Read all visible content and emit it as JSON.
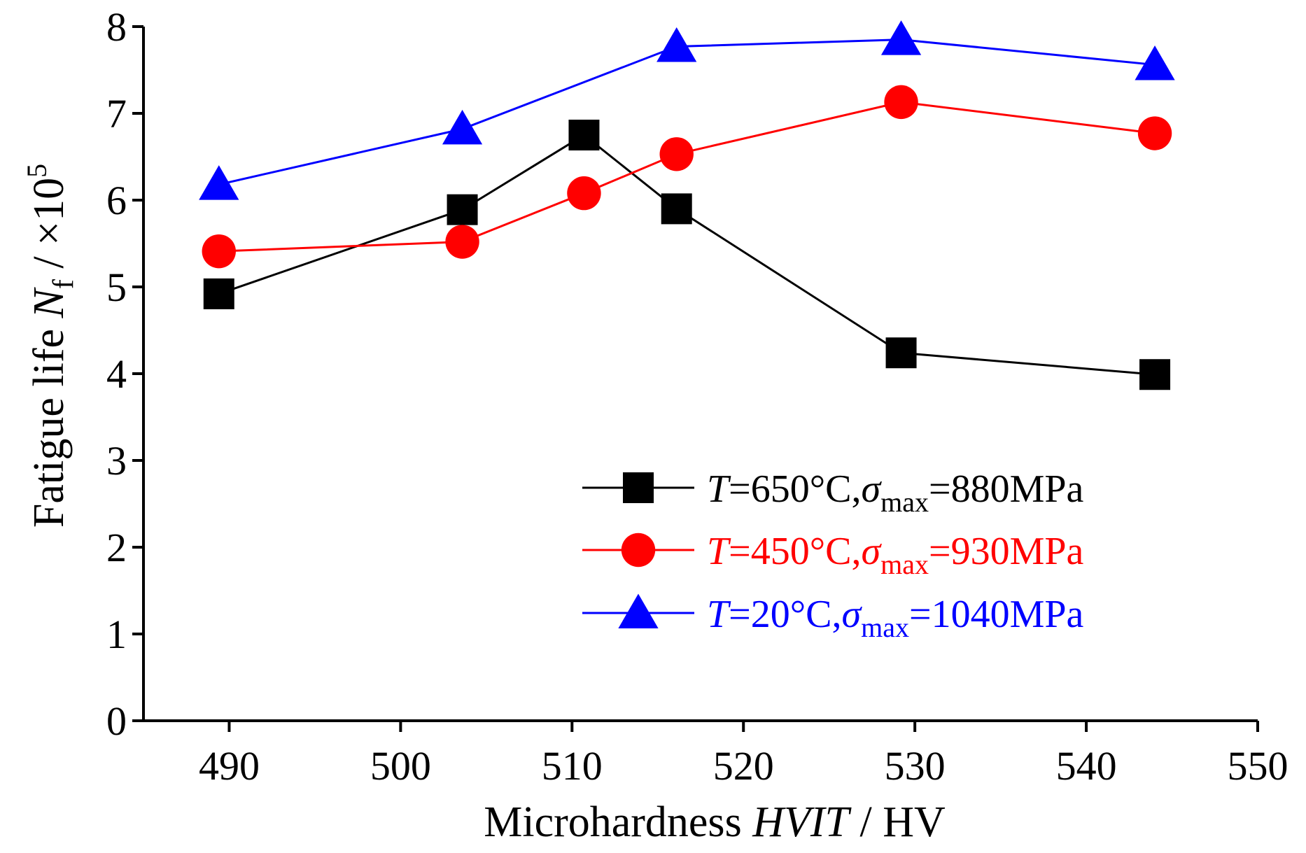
{
  "chart_data": {
    "type": "line",
    "title": "",
    "xlabel": {
      "prefix": "Microhardness ",
      "italic": "HVIT",
      "suffix": " / HV"
    },
    "ylabel": {
      "prefix": "Fatigue life  ",
      "italic": "N",
      "sub": "f",
      "mid": " / ×10",
      "sup": "5"
    },
    "xlim": [
      485,
      550
    ],
    "ylim": [
      0,
      8
    ],
    "xticks": [
      490,
      500,
      510,
      520,
      530,
      540,
      550
    ],
    "yticks": [
      0,
      1,
      2,
      3,
      4,
      5,
      6,
      7,
      8
    ],
    "legend_position": "bottom-right",
    "series": [
      {
        "name": "T=650°C,σmax=880MPa",
        "label_parts": {
          "T": "T",
          "eq1": "=650°C,",
          "sigma": "σ",
          "sub": "max",
          "eq2": "=880MPa"
        },
        "color": "#000000",
        "marker": "square",
        "x": [
          489.4,
          503.6,
          510.7,
          516.1,
          529.2,
          544.0
        ],
        "y": [
          4.92,
          5.89,
          6.75,
          5.9,
          4.24,
          3.99
        ]
      },
      {
        "name": "T=450°C,σmax=930MPa",
        "label_parts": {
          "T": "T",
          "eq1": "=450°C,",
          "sigma": "σ",
          "sub": "max",
          "eq2": "=930MPa"
        },
        "color": "#ff0000",
        "marker": "circle",
        "x": [
          489.4,
          503.6,
          510.7,
          516.1,
          529.2,
          544.0
        ],
        "y": [
          5.41,
          5.52,
          6.08,
          6.53,
          7.13,
          6.77
        ]
      },
      {
        "name": "T=20°C,σmax=1040MPa",
        "label_parts": {
          "T": "T",
          "eq1": "=20°C,",
          "sigma": "σ",
          "sub": "max",
          "eq2": "=1040MPa"
        },
        "color": "#0000ff",
        "marker": "triangle",
        "x": [
          489.4,
          503.6,
          510.7,
          516.1,
          529.2,
          544.0
        ],
        "y": [
          6.18,
          6.82,
          null,
          7.77,
          7.85,
          7.56
        ]
      }
    ]
  }
}
